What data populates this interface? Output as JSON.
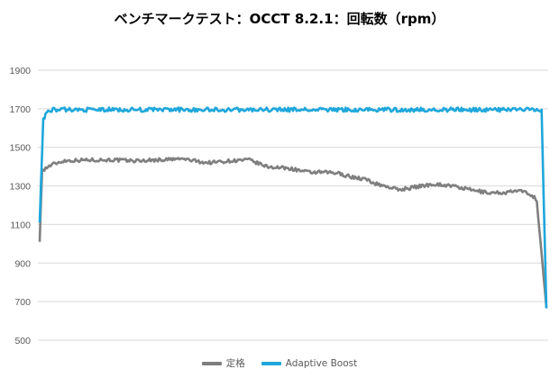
{
  "chart_data": {
    "type": "line",
    "title": "ベンチマークテスト：OCCT 8.2.1：回転数（rpm）",
    "ylim": [
      500,
      1900
    ],
    "yticks": [
      1900,
      1700,
      1500,
      1300,
      1100,
      900,
      700,
      500
    ],
    "grid": true,
    "legend_position": "bottom",
    "x_count": 300,
    "series": [
      {
        "name": "定格",
        "color": "#7f7f7f",
        "keypoints": [
          [
            0,
            1010
          ],
          [
            2,
            1380
          ],
          [
            10,
            1410
          ],
          [
            20,
            1430
          ],
          [
            40,
            1435
          ],
          [
            60,
            1435
          ],
          [
            80,
            1430
          ],
          [
            100,
            1435
          ],
          [
            120,
            1440
          ],
          [
            140,
            1420
          ],
          [
            160,
            1430
          ],
          [
            175,
            1435
          ],
          [
            190,
            1400
          ],
          [
            210,
            1390
          ],
          [
            225,
            1370
          ],
          [
            240,
            1370
          ],
          [
            250,
            1365
          ],
          [
            262,
            1345
          ],
          [
            272,
            1335
          ],
          [
            282,
            1310
          ],
          [
            292,
            1295
          ],
          [
            300,
            1280
          ],
          [
            315,
            1295
          ],
          [
            330,
            1310
          ],
          [
            345,
            1300
          ],
          [
            360,
            1280
          ],
          [
            375,
            1265
          ],
          [
            390,
            1265
          ],
          [
            400,
            1275
          ],
          [
            410,
            1260
          ],
          [
            415,
            1235
          ],
          [
            416,
            1220
          ],
          [
            420,
            950
          ],
          [
            424,
            670
          ]
        ],
        "noise": 18
      },
      {
        "name": "Adaptive Boost",
        "color": "#1ea7db",
        "keypoints": [
          [
            0,
            1110
          ],
          [
            3,
            1650
          ],
          [
            8,
            1695
          ],
          [
            420,
            1695
          ],
          [
            424,
            665
          ]
        ],
        "noise": 22
      }
    ]
  }
}
